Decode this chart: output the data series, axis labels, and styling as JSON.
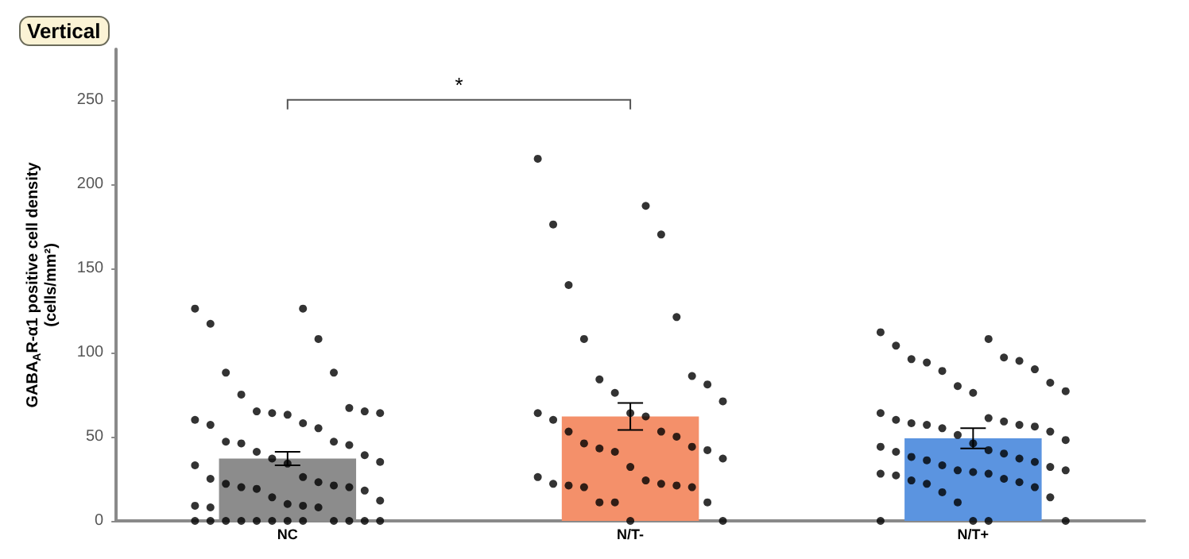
{
  "chart_data": {
    "type": "bar",
    "title": "Vertical",
    "ylabel": "GABA$_{A}$R-α1 positive cell density\n(cells/mm²)",
    "categories": [
      "NC",
      "N/T-",
      "N/T+"
    ],
    "ylim": [
      0,
      280
    ],
    "yticks": [
      0,
      50,
      100,
      150,
      200,
      250
    ],
    "grid": false,
    "annotations": [
      "*"
    ],
    "series": [
      {
        "values": [
          37,
          62,
          49
        ],
        "errors": [
          4,
          8,
          6
        ],
        "colors": [
          "#8c8c8c",
          "#f4906a",
          "#5b94e0"
        ]
      },
      {
        "type": "scatter",
        "color": "#000000",
        "marker": "circle",
        "x": [
          "NC",
          "NC",
          "NC",
          "NC",
          "NC",
          "NC",
          "NC",
          "NC",
          "NC",
          "NC",
          "NC",
          "NC",
          "NC",
          "NC",
          "NC",
          "NC",
          "NC",
          "NC",
          "NC",
          "NC",
          "NC",
          "NC",
          "NC",
          "NC",
          "NC",
          "NC",
          "NC",
          "NC",
          "NC",
          "NC",
          "NC",
          "NC",
          "NC",
          "NC",
          "NC",
          "NC",
          "NC",
          "NC",
          "NC",
          "NC",
          "NC",
          "NC",
          "NC",
          "NC",
          "NC",
          "NC",
          "NC",
          "NC",
          "NC",
          "NC",
          "NC",
          "NC",
          "NC",
          "NC",
          "NC",
          "N/T-",
          "N/T-",
          "N/T-",
          "N/T-",
          "N/T-",
          "N/T-",
          "N/T-",
          "N/T-",
          "N/T-",
          "N/T-",
          "N/T-",
          "N/T-",
          "N/T-",
          "N/T-",
          "N/T-",
          "N/T-",
          "N/T-",
          "N/T-",
          "N/T-",
          "N/T-",
          "N/T-",
          "N/T-",
          "N/T-",
          "N/T-",
          "N/T-",
          "N/T-",
          "N/T-",
          "N/T-",
          "N/T-",
          "N/T-",
          "N/T-",
          "N/T-",
          "N/T-",
          "N/T-",
          "N/T-",
          "N/T-",
          "N/T-",
          "N/T-",
          "N/T-",
          "N/T+",
          "N/T+",
          "N/T+",
          "N/T+",
          "N/T+",
          "N/T+",
          "N/T+",
          "N/T+",
          "N/T+",
          "N/T+",
          "N/T+",
          "N/T+",
          "N/T+",
          "N/T+",
          "N/T+",
          "N/T+",
          "N/T+",
          "N/T+",
          "N/T+",
          "N/T+",
          "N/T+",
          "N/T+",
          "N/T+",
          "N/T+",
          "N/T+",
          "N/T+",
          "N/T+",
          "N/T+",
          "N/T+",
          "N/T+",
          "N/T+",
          "N/T+",
          "N/T+",
          "N/T+",
          "N/T+",
          "N/T+",
          "N/T+",
          "N/T+",
          "N/T+",
          "N/T+",
          "N/T+",
          "N/T+",
          "N/T+",
          "N/T+",
          "N/T+",
          "N/T+",
          "N/T+",
          "N/T+",
          "N/T+",
          "N/T+",
          "N/T+",
          "N/T+",
          "N/T+",
          "N/T+"
        ],
        "values": [
          126,
          126,
          117,
          108,
          88,
          88,
          75,
          67,
          65,
          65,
          64,
          64,
          63,
          60,
          58,
          57,
          55,
          47,
          47,
          46,
          45,
          41,
          39,
          37,
          35,
          34,
          33,
          26,
          25,
          23,
          22,
          21,
          20,
          20,
          19,
          18,
          14,
          12,
          10,
          9,
          9,
          8,
          8,
          0,
          0,
          0,
          0,
          0,
          0,
          0,
          0,
          0,
          0,
          0,
          0,
          215,
          187,
          176,
          170,
          140,
          121,
          108,
          86,
          84,
          81,
          76,
          71,
          64,
          64,
          62,
          60,
          53,
          53,
          50,
          46,
          44,
          43,
          42,
          41,
          37,
          32,
          26,
          24,
          22,
          22,
          21,
          21,
          20,
          20,
          11,
          11,
          11,
          0,
          0,
          112,
          108,
          104,
          97,
          96,
          95,
          94,
          90,
          89,
          82,
          80,
          77,
          76,
          64,
          61,
          60,
          59,
          58,
          57,
          57,
          56,
          55,
          53,
          51,
          48,
          46,
          44,
          42,
          41,
          40,
          38,
          37,
          36,
          35,
          33,
          32,
          30,
          30,
          29,
          28,
          28,
          27,
          25,
          24,
          23,
          22,
          20,
          17,
          14,
          11,
          0,
          0,
          0,
          0
        ]
      }
    ]
  }
}
